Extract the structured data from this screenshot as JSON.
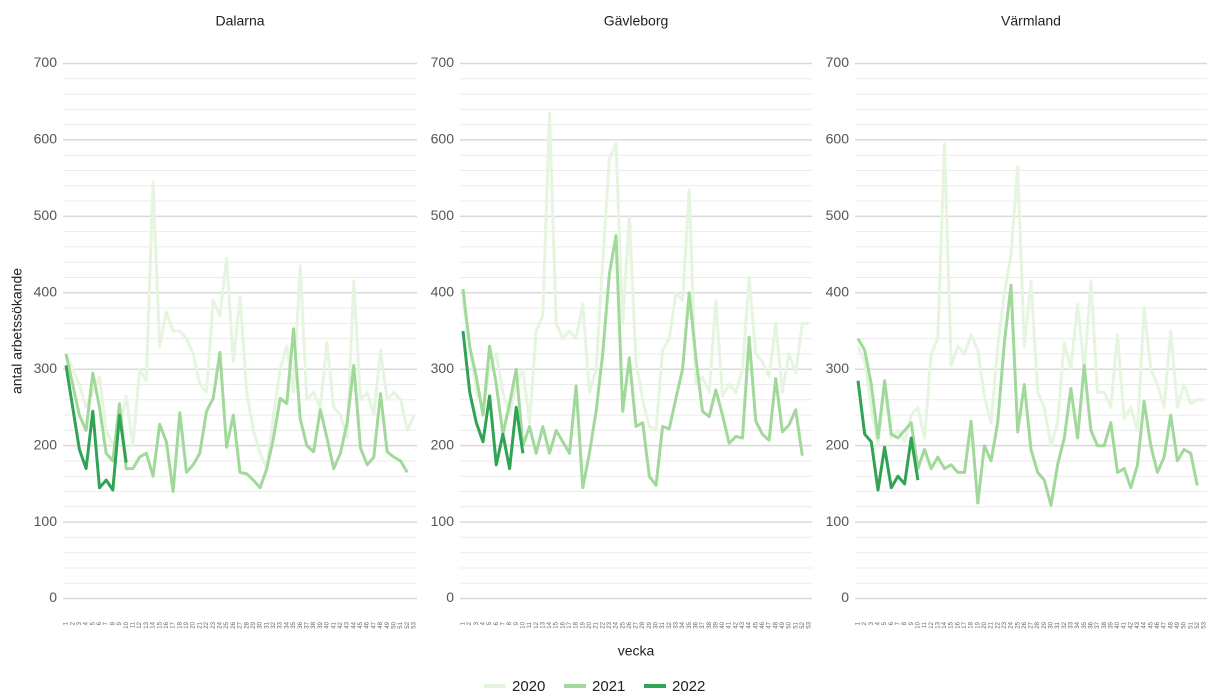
{
  "chart_data": [
    {
      "type": "line",
      "title": "Dalarna",
      "ylabel": "antal arbetssökande",
      "legend": "bottom",
      "x": [
        1,
        2,
        3,
        4,
        5,
        6,
        7,
        8,
        9,
        10,
        11,
        12,
        13,
        14,
        15,
        16,
        17,
        18,
        19,
        20,
        21,
        22,
        23,
        24,
        25,
        26,
        27,
        28,
        29,
        30,
        31,
        32,
        33,
        34,
        35,
        36,
        37,
        38,
        39,
        40,
        41,
        42,
        43,
        44,
        45,
        46,
        47,
        48,
        49,
        50,
        51,
        52,
        53
      ],
      "xlim": [
        1,
        53
      ],
      "ylim": [
        -15,
        715
      ],
      "yticks": [
        0,
        100,
        200,
        300,
        400,
        500,
        600,
        700
      ],
      "grid": true,
      "series": [
        {
          "name": "2020",
          "color": "#e5f5e0",
          "values": [
            320,
            300,
            280,
            250,
            270,
            290,
            220,
            200,
            220,
            265,
            200,
            300,
            285,
            545,
            330,
            375,
            350,
            350,
            340,
            320,
            280,
            270,
            390,
            370,
            445,
            310,
            395,
            270,
            220,
            190,
            170,
            240,
            300,
            330,
            270,
            435,
            260,
            270,
            250,
            335,
            250,
            240,
            210,
            415,
            260,
            270,
            240,
            325,
            260,
            270,
            260,
            220,
            240
          ]
        },
        {
          "name": "2021",
          "color": "#a1d99b",
          "values": [
            320,
            280,
            240,
            220,
            295,
            250,
            190,
            180,
            255,
            170,
            170,
            185,
            190,
            160,
            228,
            205,
            140,
            243,
            165,
            175,
            190,
            245,
            262,
            322,
            198,
            240,
            165,
            163,
            155,
            145,
            170,
            210,
            262,
            255,
            353,
            235,
            200,
            192,
            247,
            210,
            170,
            190,
            230,
            305,
            197,
            175,
            185,
            268,
            192,
            185,
            180,
            165,
            null
          ]
        },
        {
          "name": "2022",
          "color": "#31a354",
          "values": [
            305,
            250,
            195,
            170,
            245,
            145,
            155,
            142,
            240,
            178,
            null,
            null,
            null,
            null,
            null,
            null,
            null,
            null,
            null,
            null,
            null,
            null,
            null,
            null,
            null,
            null,
            null,
            null,
            null,
            null,
            null,
            null,
            null,
            null,
            null,
            null,
            null,
            null,
            null,
            null,
            null,
            null,
            null,
            null,
            null,
            null,
            null,
            null,
            null,
            null,
            null,
            null,
            null
          ]
        }
      ]
    },
    {
      "type": "line",
      "title": "Gävleborg",
      "xlabel": "vecka",
      "x": [
        1,
        2,
        3,
        4,
        5,
        6,
        7,
        8,
        9,
        10,
        11,
        12,
        13,
        14,
        15,
        16,
        17,
        18,
        19,
        20,
        21,
        22,
        23,
        24,
        25,
        26,
        27,
        28,
        29,
        30,
        31,
        32,
        33,
        34,
        35,
        36,
        37,
        38,
        39,
        40,
        41,
        42,
        43,
        44,
        45,
        46,
        47,
        48,
        49,
        50,
        51,
        52,
        53
      ],
      "xlim": [
        1,
        53
      ],
      "ylim": [
        -15,
        715
      ],
      "yticks": [
        0,
        100,
        200,
        300,
        400,
        500,
        600,
        700
      ],
      "grid": true,
      "series": [
        {
          "name": "2020",
          "color": "#e5f5e0",
          "values": [
            390,
            330,
            270,
            250,
            300,
            320,
            270,
            240,
            280,
            300,
            230,
            350,
            370,
            635,
            360,
            340,
            350,
            340,
            385,
            270,
            300,
            440,
            575,
            595,
            360,
            500,
            310,
            260,
            225,
            220,
            325,
            340,
            400,
            390,
            535,
            280,
            290,
            270,
            390,
            265,
            280,
            270,
            300,
            420,
            320,
            310,
            290,
            360,
            270,
            320,
            295,
            360,
            360
          ]
        },
        {
          "name": "2021",
          "color": "#a1d99b",
          "values": [
            405,
            330,
            290,
            240,
            330,
            280,
            215,
            255,
            300,
            200,
            225,
            190,
            225,
            190,
            220,
            205,
            190,
            278,
            145,
            190,
            245,
            320,
            425,
            475,
            245,
            315,
            225,
            230,
            160,
            148,
            225,
            222,
            262,
            300,
            400,
            315,
            245,
            238,
            273,
            240,
            203,
            212,
            210,
            342,
            232,
            215,
            207,
            288,
            218,
            227,
            247,
            187,
            null
          ]
        },
        {
          "name": "2022",
          "color": "#31a354",
          "values": [
            350,
            270,
            230,
            205,
            265,
            175,
            215,
            170,
            250,
            190,
            null,
            null,
            null,
            null,
            null,
            null,
            null,
            null,
            null,
            null,
            null,
            null,
            null,
            null,
            null,
            null,
            null,
            null,
            null,
            null,
            null,
            null,
            null,
            null,
            null,
            null,
            null,
            null,
            null,
            null,
            null,
            null,
            null,
            null,
            null,
            null,
            null,
            null,
            null,
            null,
            null,
            null,
            null
          ]
        }
      ]
    },
    {
      "type": "line",
      "title": "Värmland",
      "x": [
        1,
        2,
        3,
        4,
        5,
        6,
        7,
        8,
        9,
        10,
        11,
        12,
        13,
        14,
        15,
        16,
        17,
        18,
        19,
        20,
        21,
        22,
        23,
        24,
        25,
        26,
        27,
        28,
        29,
        30,
        31,
        32,
        33,
        34,
        35,
        36,
        37,
        38,
        39,
        40,
        41,
        42,
        43,
        44,
        45,
        46,
        47,
        48,
        49,
        50,
        51,
        52,
        53
      ],
      "xlim": [
        1,
        53
      ],
      "ylim": [
        -15,
        715
      ],
      "yticks": [
        0,
        100,
        200,
        300,
        400,
        500,
        600,
        700
      ],
      "grid": true,
      "series": [
        {
          "name": "2020",
          "color": "#e5f5e0",
          "values": [
            330,
            310,
            250,
            200,
            280,
            210,
            220,
            205,
            240,
            250,
            210,
            320,
            340,
            595,
            305,
            330,
            320,
            345,
            325,
            265,
            230,
            330,
            400,
            450,
            565,
            330,
            415,
            270,
            250,
            200,
            230,
            335,
            300,
            385,
            300,
            415,
            270,
            270,
            250,
            345,
            235,
            250,
            220,
            380,
            300,
            280,
            250,
            350,
            250,
            280,
            255,
            260,
            260
          ]
        },
        {
          "name": "2021",
          "color": "#a1d99b",
          "values": [
            340,
            325,
            280,
            210,
            285,
            215,
            210,
            220,
            230,
            170,
            195,
            170,
            185,
            170,
            175,
            165,
            165,
            232,
            125,
            200,
            180,
            230,
            335,
            410,
            218,
            280,
            195,
            165,
            155,
            122,
            175,
            210,
            275,
            210,
            305,
            220,
            200,
            200,
            230,
            165,
            170,
            145,
            175,
            258,
            200,
            165,
            185,
            240,
            180,
            195,
            190,
            148,
            null
          ]
        },
        {
          "name": "2022",
          "color": "#31a354",
          "values": [
            285,
            215,
            205,
            142,
            198,
            145,
            160,
            150,
            210,
            155,
            null,
            null,
            null,
            null,
            null,
            null,
            null,
            null,
            null,
            null,
            null,
            null,
            null,
            null,
            null,
            null,
            null,
            null,
            null,
            null,
            null,
            null,
            null,
            null,
            null,
            null,
            null,
            null,
            null,
            null,
            null,
            null,
            null,
            null,
            null,
            null,
            null,
            null,
            null,
            null,
            null,
            null,
            null
          ]
        }
      ]
    }
  ]
}
